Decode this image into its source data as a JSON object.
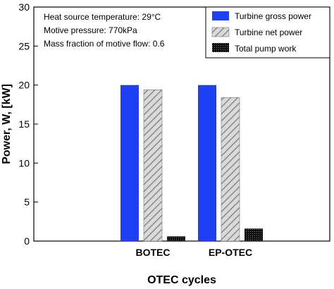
{
  "chart_data": {
    "type": "bar",
    "xlabel": "OTEC cycles",
    "ylabel": "Power, W, [kW]",
    "ylim": [
      0,
      30
    ],
    "yticks": [
      0,
      5,
      10,
      15,
      20,
      25,
      30
    ],
    "grid": false,
    "legend_position": "top-right",
    "categories": [
      "BOTEC",
      "EP-OTEC"
    ],
    "series": [
      {
        "name": "Turbine gross power",
        "values": [
          20.0,
          20.0
        ],
        "color": "#1f3ff2",
        "pattern": "solid"
      },
      {
        "name": "Turbine net power",
        "values": [
          19.4,
          18.4
        ],
        "color": "#c9c9c9",
        "pattern": "diagonal-hatch"
      },
      {
        "name": "Total pump work",
        "values": [
          0.6,
          1.6
        ],
        "color": "#1a1a1a",
        "pattern": "dots"
      }
    ],
    "annotations": [
      "Heat source temperature: 29°C",
      "Motive pressure: 770kPa",
      "Mass fraction of motive flow: 0.6"
    ]
  }
}
